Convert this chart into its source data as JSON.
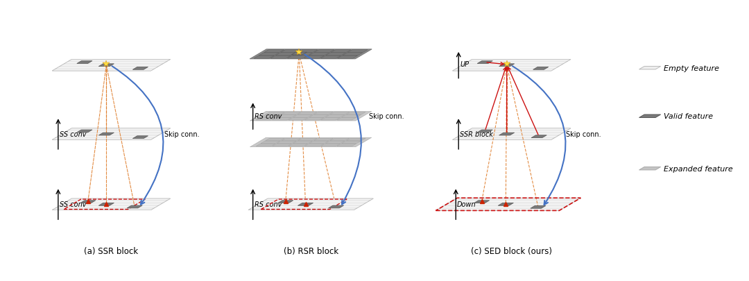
{
  "bg_color": "#ffffff",
  "title_a": "(a) SSR block",
  "title_b": "(b) RSR block",
  "title_c": "(c) SED block (ours)",
  "legend_empty": "Empty feature",
  "legend_valid": "Valid feature",
  "legend_expanded": "Expanded feature",
  "label_ss_conv": "SS conv",
  "label_rs_conv": "RS conv",
  "label_ssr_block": "SSR block",
  "label_skip": "Skip conn.",
  "label_up": "UP",
  "label_down": "Down",
  "orange": "#e08030",
  "blue": "#4472c4",
  "red": "#cc1111",
  "gray_dark": "#7a7a7a",
  "gray_light": "#cccccc",
  "gray_lighter": "#e0e0e0"
}
